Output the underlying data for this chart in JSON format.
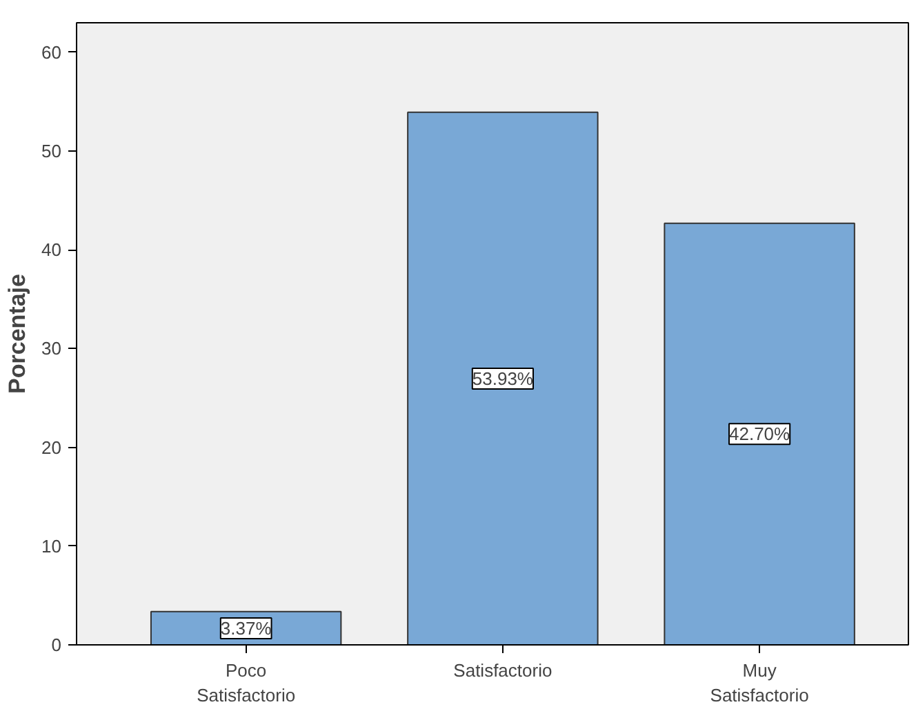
{
  "chart_data": {
    "type": "bar",
    "ylabel": "Porcentaje",
    "categories": [
      "Poco Satisfactorio",
      "Satisfactorio",
      "Muy Satisfactorio"
    ],
    "values": [
      3.37,
      53.93,
      42.7
    ],
    "value_labels": [
      "3.37%",
      "53.93%",
      "42.70%"
    ],
    "color": "#79a8d6",
    "ylim": [
      0,
      63
    ],
    "yticks": [
      0,
      10,
      20,
      30,
      40,
      50,
      60
    ],
    "grid": false
  }
}
